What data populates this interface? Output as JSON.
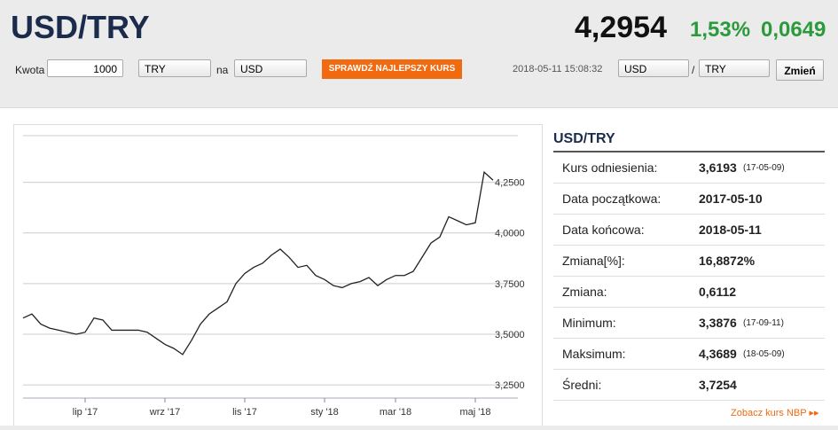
{
  "header": {
    "pair": "USD/TRY",
    "rate": "4,2954",
    "change_pct": "1,53%",
    "change": "0,0649"
  },
  "form": {
    "amount_label": "Kwota",
    "amount": "1000",
    "from": "TRY",
    "to_label": "na",
    "to": "USD",
    "button": "SPRAWDŹ NAJLEPSZY KURS",
    "datetime": "2018-05-11 15:08:32",
    "pair_from": "USD",
    "separator": "/",
    "pair_to": "TRY",
    "change_button": "Zmień"
  },
  "chart_data": {
    "type": "line",
    "color": "#222222",
    "categories": [
      null,
      null,
      null,
      null,
      null,
      null,
      null,
      "lip '17",
      null,
      null,
      null,
      null,
      null,
      null,
      null,
      null,
      "wrz '17",
      null,
      null,
      null,
      null,
      null,
      null,
      null,
      null,
      "lis '17",
      null,
      null,
      null,
      null,
      null,
      null,
      null,
      null,
      "sty '18",
      null,
      null,
      null,
      null,
      null,
      null,
      null,
      "mar '18",
      null,
      null,
      null,
      null,
      null,
      null,
      null,
      null,
      "maj '18",
      null,
      null
    ],
    "values": [
      3.58,
      3.6,
      3.55,
      3.53,
      3.52,
      3.51,
      3.5,
      3.51,
      3.58,
      3.57,
      3.52,
      3.52,
      3.52,
      3.52,
      3.51,
      3.48,
      3.45,
      3.43,
      3.4,
      3.47,
      3.55,
      3.6,
      3.63,
      3.66,
      3.75,
      3.8,
      3.83,
      3.85,
      3.89,
      3.92,
      3.88,
      3.83,
      3.84,
      3.79,
      3.77,
      3.74,
      3.73,
      3.75,
      3.76,
      3.78,
      3.74,
      3.77,
      3.79,
      3.79,
      3.81,
      3.88,
      3.95,
      3.98,
      4.08,
      4.06,
      4.04,
      4.05,
      4.3,
      4.26
    ],
    "ylim": [
      3.22,
      4.48
    ],
    "yticks": [
      {
        "value": 3.25,
        "label": "3,2500"
      },
      {
        "value": 3.5,
        "label": "3,5000"
      },
      {
        "value": 3.75,
        "label": "3,7500"
      },
      {
        "value": 4.0,
        "label": "4,0000"
      },
      {
        "value": 4.25,
        "label": "4,2500"
      }
    ],
    "grid": true
  },
  "panel": {
    "title": "USD/TRY",
    "rows": [
      {
        "label": "Kurs odniesienia:",
        "value": "3,6193",
        "note": "(17-05-09)"
      },
      {
        "label": "Data początkowa:",
        "value": "2017-05-10"
      },
      {
        "label": "Data końcowa:",
        "value": "2018-05-11"
      },
      {
        "label": "Zmiana[%]:",
        "value": "16,8872%"
      },
      {
        "label": "Zmiana:",
        "value": "0,6112"
      },
      {
        "label": "Minimum:",
        "value": "3,3876",
        "note": "(17-09-11)"
      },
      {
        "label": "Maksimum:",
        "value": "4,3689",
        "note": "(18-05-09)"
      },
      {
        "label": "Średni:",
        "value": "3,7254"
      }
    ],
    "link": "Zobacz kurs NBP"
  }
}
